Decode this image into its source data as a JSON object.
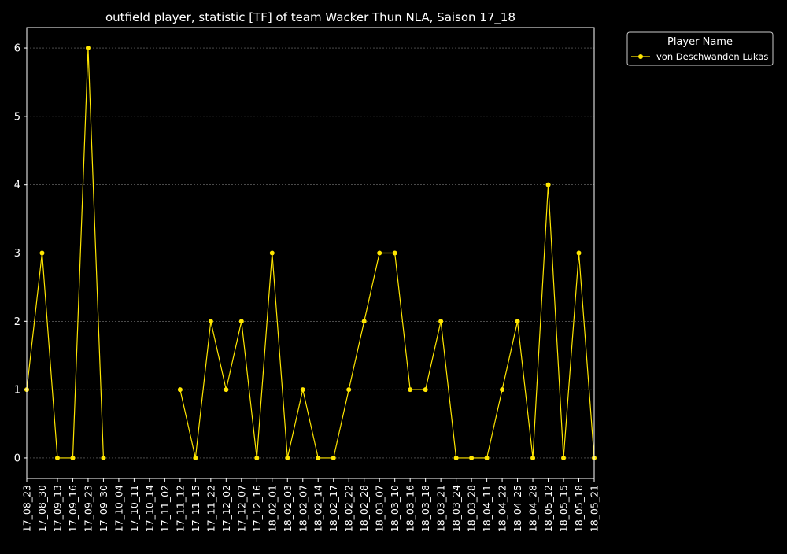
{
  "chart_data": {
    "type": "line",
    "title": "outfield player, statistic [TF] of team Wacker Thun NLA, Saison 17_18",
    "xlabel": "",
    "ylabel": "",
    "ylim": [
      -0.3,
      6.3
    ],
    "yticks": [
      0,
      1,
      2,
      3,
      4,
      5,
      6
    ],
    "grid": true,
    "legend": {
      "title": "Player Name",
      "placement": "outside-top-right"
    },
    "categories": [
      "17_08_23",
      "17_08_30",
      "17_09_13",
      "17_09_16",
      "17_09_23",
      "17_09_30",
      "17_10_04",
      "17_10_11",
      "17_10_14",
      "17_11_02",
      "17_11_12",
      "17_11_15",
      "17_11_22",
      "17_12_02",
      "17_12_07",
      "17_12_16",
      "18_02_01",
      "18_02_03",
      "18_02_07",
      "18_02_14",
      "18_02_17",
      "18_02_22",
      "18_02_28",
      "18_03_07",
      "18_03_10",
      "18_03_16",
      "18_03_18",
      "18_03_21",
      "18_03_24",
      "18_03_28",
      "18_04_11",
      "18_04_22",
      "18_04_25",
      "18_04_28",
      "18_05_12",
      "18_05_15",
      "18_05_18",
      "18_05_21"
    ],
    "series": [
      {
        "name": "von Deschwanden Lukas",
        "color": "#ffe600",
        "values": [
          1,
          3,
          0,
          0,
          6,
          0,
          null,
          null,
          null,
          null,
          1,
          0,
          2,
          1,
          2,
          0,
          3,
          0,
          1,
          0,
          0,
          1,
          2,
          3,
          3,
          1,
          1,
          2,
          0,
          0,
          0,
          1,
          2,
          0,
          4,
          0,
          3,
          0
        ]
      }
    ]
  }
}
